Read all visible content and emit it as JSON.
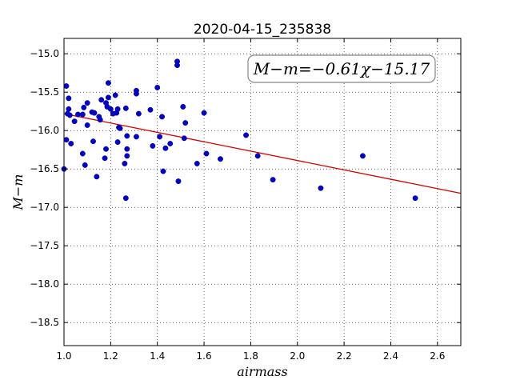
{
  "chart_data": {
    "type": "scatter",
    "title": "2020-04-15_235838",
    "xlabel": "airmass",
    "ylabel": "M−m",
    "xlim": [
      1.0,
      2.7
    ],
    "ylim": [
      -18.8,
      -14.8
    ],
    "x_ticks": [
      "1.0",
      "1.2",
      "1.4",
      "1.6",
      "1.8",
      "2.0",
      "2.2",
      "2.4",
      "2.6"
    ],
    "x_tick_values": [
      1.0,
      1.2,
      1.4,
      1.6,
      1.8,
      2.0,
      2.2,
      2.4,
      2.6
    ],
    "y_ticks": [
      "−15.0",
      "−15.5",
      "−16.0",
      "−16.5",
      "−17.0",
      "−17.5",
      "−18.0",
      "−18.5"
    ],
    "y_tick_values": [
      -15.0,
      -15.5,
      -16.0,
      -16.5,
      -17.0,
      -17.5,
      -18.0,
      -18.5
    ],
    "grid": true,
    "annotation": "M−m=−0.61χ−15.17",
    "fit": {
      "slope": -0.61,
      "intercept": -15.17,
      "color": "#cc0000"
    },
    "point_color": "#0000cc",
    "points": [
      [
        1.0,
        -16.5
      ],
      [
        1.01,
        -16.12
      ],
      [
        1.01,
        -15.42
      ],
      [
        1.015,
        -15.78
      ],
      [
        1.02,
        -15.72
      ],
      [
        1.02,
        -15.58
      ],
      [
        1.025,
        -15.8
      ],
      [
        1.03,
        -16.17
      ],
      [
        1.045,
        -15.88
      ],
      [
        1.06,
        -15.79
      ],
      [
        1.08,
        -15.79
      ],
      [
        1.08,
        -16.3
      ],
      [
        1.085,
        -15.7
      ],
      [
        1.09,
        -16.45
      ],
      [
        1.1,
        -15.93
      ],
      [
        1.1,
        -15.64
      ],
      [
        1.12,
        -15.76
      ],
      [
        1.125,
        -16.14
      ],
      [
        1.13,
        -15.77
      ],
      [
        1.14,
        -16.6
      ],
      [
        1.15,
        -15.82
      ],
      [
        1.155,
        -15.86
      ],
      [
        1.16,
        -15.6
      ],
      [
        1.175,
        -16.36
      ],
      [
        1.18,
        -16.24
      ],
      [
        1.18,
        -15.64
      ],
      [
        1.185,
        -15.69
      ],
      [
        1.19,
        -15.57
      ],
      [
        1.19,
        -15.38
      ],
      [
        1.2,
        -15.72
      ],
      [
        1.21,
        -15.78
      ],
      [
        1.22,
        -15.54
      ],
      [
        1.225,
        -15.77
      ],
      [
        1.23,
        -15.72
      ],
      [
        1.23,
        -16.15
      ],
      [
        1.235,
        -15.96
      ],
      [
        1.24,
        -15.97
      ],
      [
        1.26,
        -16.43
      ],
      [
        1.265,
        -16.88
      ],
      [
        1.265,
        -15.71
      ],
      [
        1.27,
        -16.07
      ],
      [
        1.27,
        -16.24
      ],
      [
        1.27,
        -16.33
      ],
      [
        1.31,
        -15.52
      ],
      [
        1.31,
        -15.48
      ],
      [
        1.31,
        -16.08
      ],
      [
        1.32,
        -15.78
      ],
      [
        1.37,
        -15.73
      ],
      [
        1.38,
        -16.2
      ],
      [
        1.4,
        -15.44
      ],
      [
        1.41,
        -16.08
      ],
      [
        1.42,
        -15.82
      ],
      [
        1.425,
        -16.53
      ],
      [
        1.435,
        -16.23
      ],
      [
        1.455,
        -16.17
      ],
      [
        1.485,
        -15.1
      ],
      [
        1.485,
        -15.15
      ],
      [
        1.49,
        -16.66
      ],
      [
        1.51,
        -15.69
      ],
      [
        1.515,
        -16.1
      ],
      [
        1.52,
        -15.9
      ],
      [
        1.57,
        -16.43
      ],
      [
        1.6,
        -15.77
      ],
      [
        1.61,
        -16.3
      ],
      [
        1.67,
        -16.37
      ],
      [
        1.78,
        -16.06
      ],
      [
        1.83,
        -16.33
      ],
      [
        1.895,
        -16.64
      ],
      [
        2.1,
        -16.75
      ],
      [
        2.28,
        -16.33
      ],
      [
        2.505,
        -16.88
      ]
    ]
  }
}
